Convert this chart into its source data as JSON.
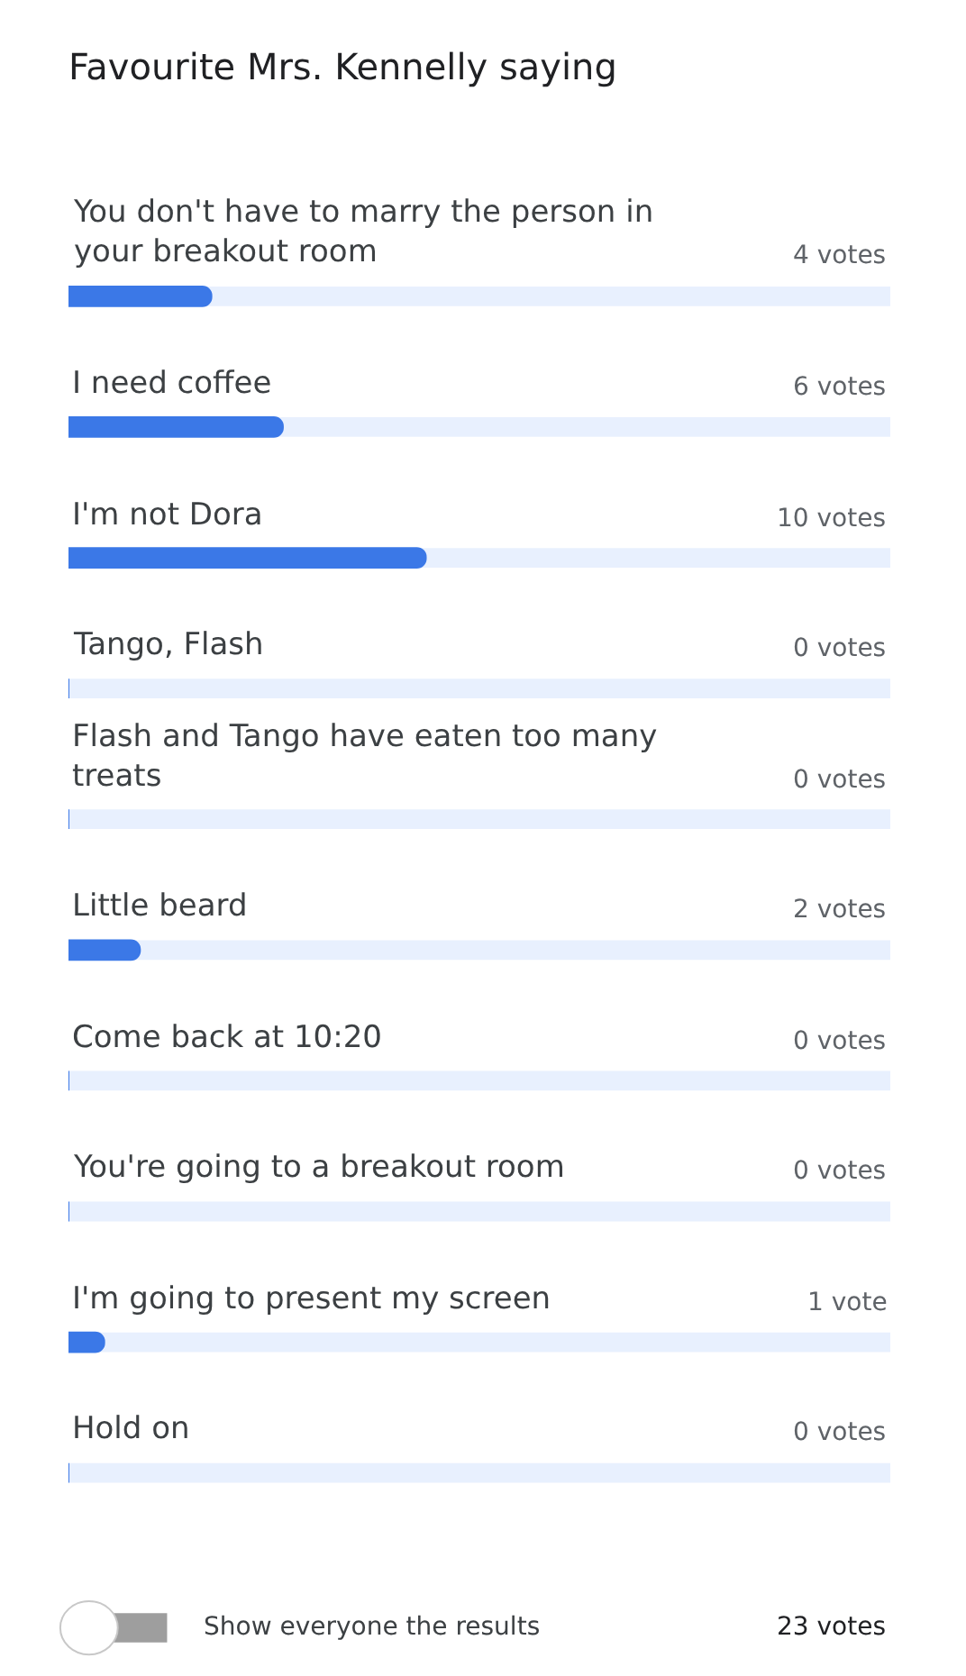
{
  "chart_data": {
    "type": "bar",
    "orientation": "horizontal",
    "title": "Favourite Mrs. Kennelly saying",
    "categories": [
      "You don't have to marry the person in your breakout room",
      "I need coffee",
      "I'm not Dora",
      "Tango, Flash",
      "Flash and Tango have eaten too many treats",
      "Little beard",
      "Come back at 10:20",
      "You're going to a breakout room",
      "I'm going to present my screen",
      "Hold on"
    ],
    "values": [
      4,
      6,
      10,
      0,
      0,
      2,
      0,
      0,
      1,
      0
    ],
    "value_labels": [
      "4 votes",
      "6 votes",
      "10 votes",
      "0 votes",
      "0 votes",
      "2 votes",
      "0 votes",
      "0 votes",
      "1 vote",
      "0 votes"
    ],
    "color": "#3b78e7",
    "xlim": [
      0,
      23
    ],
    "tick_labels": false,
    "grid": false,
    "legend": false,
    "annotations": [
      "Show everyone the results",
      "23 votes"
    ]
  }
}
